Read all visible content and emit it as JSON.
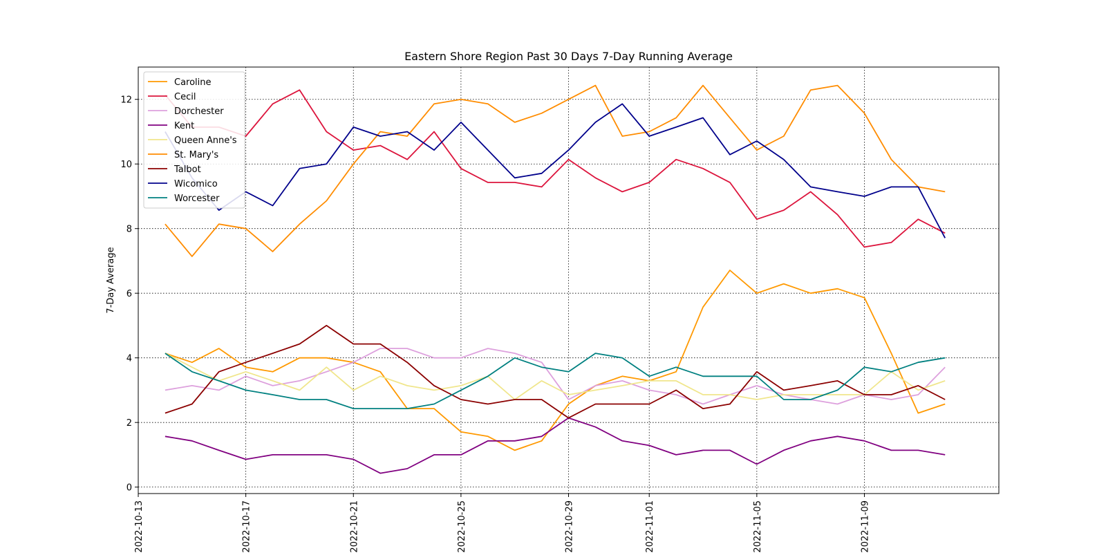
{
  "chart_data": {
    "type": "line",
    "title": "Eastern Shore Region Past 30 Days 7-Day Running Average",
    "xlabel": "",
    "ylabel": "7-Day Average",
    "x": [
      "2022-10-14",
      "2022-10-15",
      "2022-10-16",
      "2022-10-17",
      "2022-10-18",
      "2022-10-19",
      "2022-10-20",
      "2022-10-21",
      "2022-10-22",
      "2022-10-23",
      "2022-10-24",
      "2022-10-25",
      "2022-10-26",
      "2022-10-27",
      "2022-10-28",
      "2022-10-29",
      "2022-10-30",
      "2022-10-31",
      "2022-11-01",
      "2022-11-02",
      "2022-11-03",
      "2022-11-04",
      "2022-11-05",
      "2022-11-06",
      "2022-11-07",
      "2022-11-08",
      "2022-11-09",
      "2022-11-10",
      "2022-11-11",
      "2022-11-12"
    ],
    "xticks": [
      "2022-10-13",
      "2022-10-17",
      "2022-10-21",
      "2022-10-25",
      "2022-10-29",
      "2022-11-01",
      "2022-11-05",
      "2022-11-09"
    ],
    "xlim": [
      "2022-10-13",
      "2022-11-14"
    ],
    "ylim": [
      -0.2,
      13
    ],
    "yticks": [
      0,
      2,
      4,
      6,
      8,
      10,
      12
    ],
    "grid": true,
    "legend": "upper-left",
    "series": [
      {
        "name": "Caroline",
        "color": "#ff9900",
        "values": [
          4.14,
          3.86,
          4.29,
          3.71,
          3.57,
          4.0,
          4.0,
          3.86,
          3.57,
          2.43,
          2.43,
          1.71,
          1.57,
          1.14,
          1.43,
          2.57,
          3.14,
          3.43,
          3.29,
          3.57,
          5.57,
          6.71,
          6.0,
          6.29,
          6.0,
          6.14,
          5.86,
          4.14,
          2.29,
          2.57
        ]
      },
      {
        "name": "Cecil",
        "color": "#dc143c",
        "values": [
          12.14,
          11.14,
          11.14,
          10.86,
          11.86,
          12.29,
          11.0,
          10.43,
          10.57,
          10.14,
          11.0,
          9.86,
          9.43,
          9.43,
          9.29,
          10.14,
          9.57,
          9.14,
          9.43,
          10.14,
          9.86,
          9.43,
          8.29,
          8.57,
          9.14,
          8.43,
          7.43,
          7.57,
          8.29,
          7.86
        ]
      },
      {
        "name": "Dorchester",
        "color": "#dda0dd",
        "values": [
          3.0,
          3.14,
          3.0,
          3.43,
          3.14,
          3.29,
          3.57,
          3.86,
          4.29,
          4.29,
          4.0,
          4.0,
          4.29,
          4.14,
          3.86,
          2.71,
          3.14,
          3.29,
          3.0,
          2.86,
          2.57,
          2.86,
          3.14,
          2.86,
          2.71,
          2.57,
          2.86,
          2.71,
          2.86,
          3.71
        ]
      },
      {
        "name": "Kent",
        "color": "#800080",
        "values": [
          1.57,
          1.43,
          1.14,
          0.86,
          1.0,
          1.0,
          1.0,
          0.86,
          0.43,
          0.57,
          1.0,
          1.0,
          1.43,
          1.43,
          1.57,
          2.14,
          1.86,
          1.43,
          1.29,
          1.0,
          1.14,
          1.14,
          0.71,
          1.14,
          1.43,
          1.57,
          1.43,
          1.14,
          1.14,
          1.0
        ]
      },
      {
        "name": "Queen Anne's",
        "color": "#f0e68c",
        "values": [
          4.14,
          3.71,
          3.29,
          3.57,
          3.29,
          3.0,
          3.71,
          3.0,
          3.43,
          3.14,
          3.0,
          3.14,
          3.43,
          2.71,
          3.29,
          2.86,
          3.0,
          3.14,
          3.29,
          3.29,
          2.86,
          2.86,
          2.71,
          2.86,
          2.86,
          2.86,
          2.86,
          3.57,
          3.0,
          3.29
        ]
      },
      {
        "name": "St. Mary's",
        "color": "#ff8c00",
        "values": [
          8.14,
          7.14,
          8.14,
          8.0,
          7.29,
          8.14,
          8.86,
          10.0,
          11.0,
          10.86,
          11.86,
          12.0,
          11.86,
          11.29,
          11.57,
          12.0,
          12.43,
          10.86,
          11.0,
          11.43,
          12.43,
          11.43,
          10.43,
          10.86,
          12.29,
          12.43,
          11.57,
          10.14,
          9.29,
          9.14
        ]
      },
      {
        "name": "Talbot",
        "color": "#8b0000",
        "values": [
          2.29,
          2.57,
          3.57,
          3.86,
          4.14,
          4.43,
          5.0,
          4.43,
          4.43,
          3.86,
          3.14,
          2.71,
          2.57,
          2.71,
          2.71,
          2.14,
          2.57,
          2.57,
          2.57,
          3.0,
          2.43,
          2.57,
          3.57,
          3.0,
          3.14,
          3.29,
          2.86,
          2.86,
          3.14,
          2.71
        ]
      },
      {
        "name": "Wicomico",
        "color": "#00008b",
        "values": [
          11.0,
          9.57,
          8.57,
          9.14,
          8.71,
          9.86,
          10.0,
          11.14,
          10.86,
          11.0,
          10.43,
          11.29,
          10.43,
          9.57,
          9.71,
          10.43,
          11.29,
          11.86,
          10.86,
          11.14,
          11.43,
          10.29,
          10.71,
          10.14,
          9.29,
          9.14,
          9.0,
          9.29,
          9.29,
          7.71
        ]
      },
      {
        "name": "Worcester",
        "color": "#008080",
        "values": [
          4.14,
          3.57,
          3.29,
          3.0,
          2.86,
          2.71,
          2.71,
          2.43,
          2.43,
          2.43,
          2.57,
          3.0,
          3.43,
          4.0,
          3.71,
          3.57,
          4.14,
          4.0,
          3.43,
          3.71,
          3.43,
          3.43,
          3.43,
          2.71,
          2.71,
          3.0,
          3.71,
          3.57,
          3.86,
          4.0
        ]
      }
    ]
  }
}
